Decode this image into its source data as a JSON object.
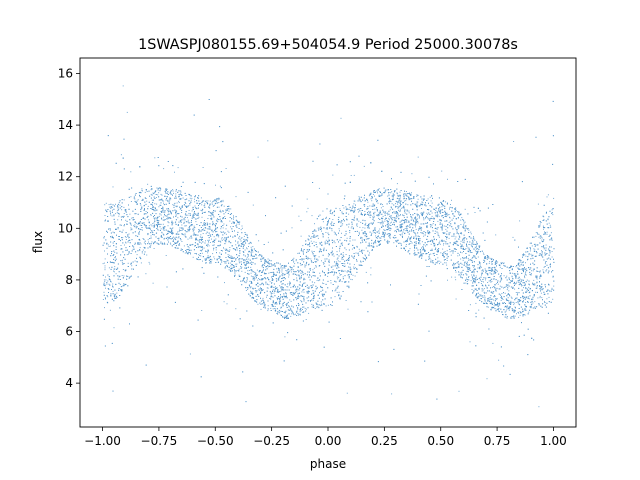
{
  "chart_data": {
    "type": "scatter",
    "title": "1SWASPJ080155.69+504054.9 Period 25000.30078s",
    "xlabel": "phase",
    "ylabel": "flux",
    "xlim": [
      -1.1,
      1.1
    ],
    "ylim": [
      2.3,
      16.6
    ],
    "xticks": [
      -1.0,
      -0.75,
      -0.5,
      -0.25,
      0.0,
      0.25,
      0.5,
      0.75,
      1.0
    ],
    "xtick_labels": [
      "−1.00",
      "−0.75",
      "−0.50",
      "−0.25",
      "0.00",
      "0.25",
      "0.50",
      "0.75",
      "1.00"
    ],
    "yticks": [
      4,
      6,
      8,
      10,
      12,
      14,
      16
    ],
    "ytick_labels": [
      "4",
      "6",
      "8",
      "10",
      "12",
      "14",
      "16"
    ],
    "grid": false,
    "point_color": "#4a90c8",
    "series": [
      {
        "x_range": [
          -1.0,
          1.0
        ],
        "profile_phase": [
          -1.0,
          -0.75,
          -0.5,
          -0.25,
          -0.2,
          0.0,
          0.25,
          0.5,
          0.75,
          0.8,
          1.0
        ],
        "profile_upper": [
          11.0,
          11.6,
          11.2,
          8.8,
          8.6,
          10.8,
          11.6,
          11.2,
          8.8,
          8.6,
          10.8
        ],
        "profile_lower": [
          7.0,
          9.4,
          8.6,
          6.8,
          6.5,
          7.0,
          9.4,
          8.6,
          6.8,
          6.5,
          7.0
        ],
        "outlier_range": [
          3.0,
          15.8
        ]
      }
    ]
  }
}
